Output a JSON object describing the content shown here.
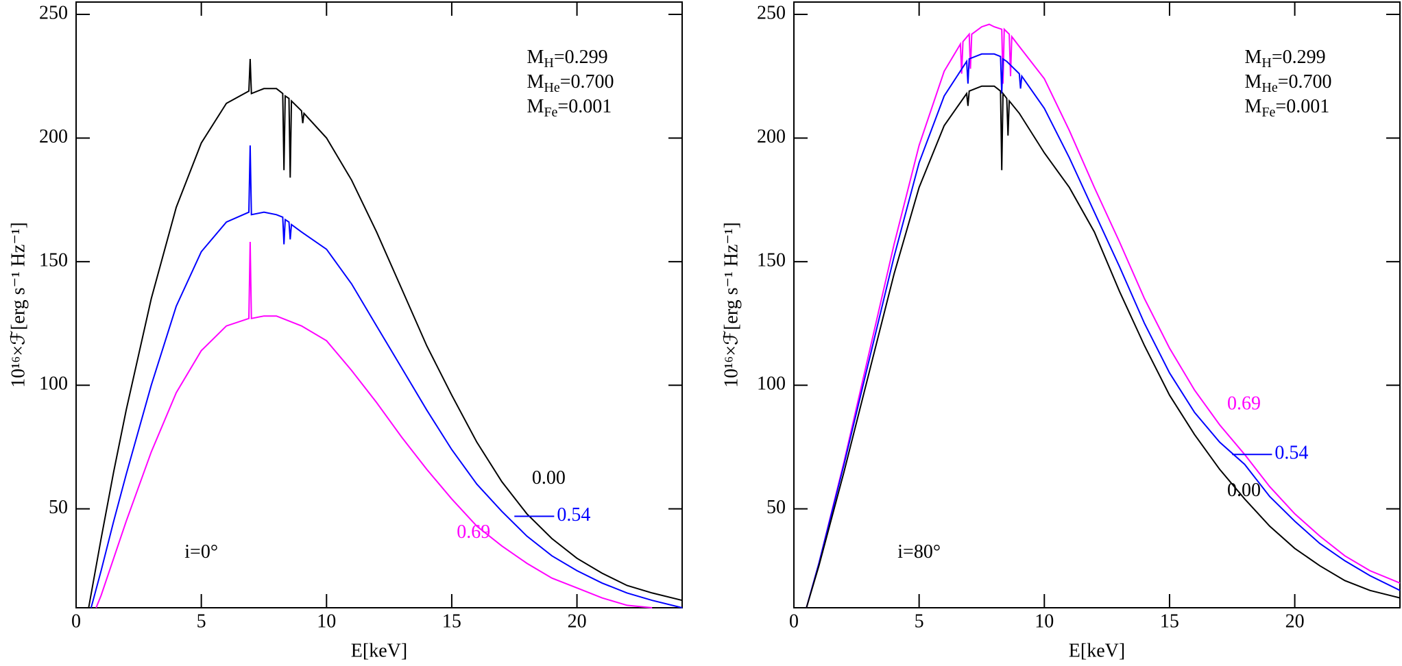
{
  "chart_data": [
    {
      "type": "line",
      "xlabel": "E[keV]",
      "ylabel": "10¹⁶×ℱ[erg s⁻¹ Hz⁻¹]",
      "annotation": "i=0°",
      "composition": [
        [
          "M",
          "H",
          "=0.299"
        ],
        [
          "M",
          "He",
          "=0.700"
        ],
        [
          "M",
          "Fe",
          "=0.001"
        ]
      ],
      "xlim": [
        0,
        24.2
      ],
      "ylim": [
        10,
        255
      ],
      "xticks": [
        0,
        5,
        10,
        15,
        20
      ],
      "yticks": [
        50,
        100,
        150,
        200,
        250
      ],
      "series": [
        {
          "name": "0.00",
          "color": "#000000",
          "x": [
            0.5,
            1,
            1.5,
            2,
            3,
            4,
            5,
            6,
            6.9,
            6.95,
            7.0,
            7.5,
            8,
            8.25,
            8.3,
            8.35,
            8.5,
            8.55,
            8.6,
            9,
            9.05,
            9.1,
            10,
            11,
            12,
            13,
            14,
            15,
            16,
            17,
            18,
            19,
            20,
            21,
            22,
            23,
            24.2
          ],
          "values": [
            10,
            38,
            65,
            90,
            135,
            172,
            198,
            214,
            219,
            232,
            218,
            220,
            220,
            218,
            187,
            217,
            216,
            184,
            215,
            211,
            206,
            210,
            200,
            183,
            162,
            139,
            116,
            96,
            77,
            61,
            48,
            38,
            30,
            24,
            19,
            16,
            13
          ]
        },
        {
          "name": "0.54",
          "color": "#0000ff",
          "x": [
            0.6,
            1,
            1.5,
            2,
            3,
            4,
            5,
            6,
            6.9,
            6.95,
            7.0,
            7.5,
            8,
            8.25,
            8.3,
            8.35,
            8.5,
            8.55,
            8.6,
            9,
            10,
            11,
            12,
            13,
            14,
            15,
            16,
            17,
            18,
            19,
            20,
            21,
            22,
            23,
            24.2
          ],
          "values": [
            10,
            25,
            45,
            64,
            100,
            132,
            154,
            166,
            170,
            197,
            169,
            170,
            169,
            168,
            157,
            167,
            166,
            159,
            165,
            162,
            155,
            141,
            124,
            107,
            90,
            74,
            60,
            49,
            39,
            31,
            25,
            20,
            16,
            13,
            10
          ]
        },
        {
          "name": "0.69",
          "color": "#ff00ff",
          "x": [
            0.8,
            1,
            1.5,
            2,
            3,
            4,
            5,
            6,
            6.9,
            6.95,
            7.0,
            7.5,
            8,
            9,
            10,
            11,
            12,
            13,
            14,
            15,
            16,
            17,
            18,
            19,
            20,
            21,
            22,
            23
          ],
          "values": [
            10,
            15,
            30,
            45,
            73,
            97,
            114,
            124,
            127,
            158,
            127,
            128,
            128,
            124,
            118,
            106,
            93,
            79,
            66,
            54,
            43,
            35,
            28,
            22,
            18,
            14,
            11,
            10
          ]
        }
      ]
    },
    {
      "type": "line",
      "xlabel": "E[keV]",
      "ylabel": "10¹⁶×ℱ[erg s⁻¹ Hz⁻¹]",
      "annotation": "i=80°",
      "composition": [
        [
          "M",
          "H",
          "=0.299"
        ],
        [
          "M",
          "He",
          "=0.700"
        ],
        [
          "M",
          "Fe",
          "=0.001"
        ]
      ],
      "xlim": [
        0,
        24.2
      ],
      "ylim": [
        10,
        255
      ],
      "xticks": [
        0,
        5,
        10,
        15,
        20
      ],
      "yticks": [
        50,
        100,
        150,
        200,
        250
      ],
      "series": [
        {
          "name": "0.69",
          "color": "#ff00ff",
          "x": [
            0.5,
            1,
            2,
            3,
            4,
            5,
            6,
            6.65,
            6.7,
            6.75,
            7,
            7.05,
            7.1,
            7.5,
            7.8,
            8,
            8.3,
            8.35,
            8.4,
            8.6,
            8.65,
            8.7,
            9,
            10,
            11,
            12,
            13,
            14,
            15,
            16,
            17,
            18,
            19,
            20,
            21,
            22,
            23,
            24.2
          ],
          "values": [
            10,
            28,
            69,
            113,
            157,
            197,
            227,
            238,
            226,
            239,
            242,
            228,
            242,
            245,
            246,
            245,
            244,
            222,
            244,
            242,
            225,
            241,
            237,
            224,
            203,
            180,
            158,
            135,
            115,
            98,
            84,
            72,
            59,
            48,
            39,
            31,
            25,
            20
          ]
        },
        {
          "name": "0.54",
          "color": "#0000ff",
          "x": [
            0.5,
            1,
            2,
            3,
            4,
            5,
            6,
            6.9,
            6.95,
            7.0,
            7.5,
            8,
            8.25,
            8.3,
            8.35,
            8.5,
            9,
            9.05,
            9.1,
            10,
            11,
            12,
            13,
            14,
            15,
            16,
            17,
            18,
            19,
            20,
            21,
            22,
            23,
            24.2
          ],
          "values": [
            10,
            28,
            68,
            110,
            152,
            190,
            217,
            231,
            222,
            232,
            234,
            234,
            233,
            218,
            232,
            231,
            226,
            220,
            225,
            212,
            192,
            170,
            148,
            125,
            105,
            89,
            77,
            68,
            55,
            45,
            36,
            29,
            23,
            17
          ]
        },
        {
          "name": "0.00",
          "color": "#000000",
          "x": [
            0.5,
            1,
            2,
            3,
            4,
            5,
            6,
            6.9,
            6.95,
            7.0,
            7.5,
            8,
            8.25,
            8.3,
            8.35,
            8.5,
            8.55,
            8.6,
            9,
            10,
            11,
            12,
            13,
            14,
            15,
            16,
            17,
            18,
            19,
            20,
            21,
            22,
            23,
            24.2
          ],
          "values": [
            10,
            27,
            65,
            105,
            145,
            180,
            205,
            218,
            213,
            219,
            221,
            221,
            219,
            187,
            218,
            216,
            201,
            215,
            210,
            194,
            180,
            162,
            138,
            116,
            96,
            80,
            66,
            54,
            43,
            34,
            27,
            21,
            17,
            14
          ]
        }
      ]
    }
  ]
}
